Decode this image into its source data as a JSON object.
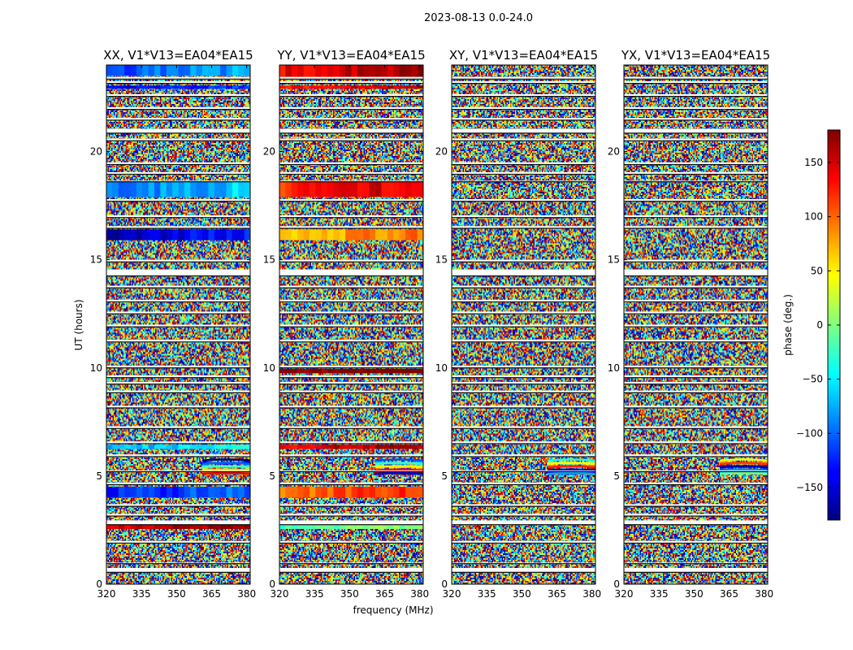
{
  "chart_data": {
    "type": "heatmap",
    "suptitle": "2023-08-13 0.0-24.0",
    "xlabel": "frequency (MHz)",
    "ylabel": "UT (hours)",
    "xlim": [
      320,
      381.5
    ],
    "ylim": [
      0,
      24
    ],
    "xticks": [
      320,
      335,
      350,
      365,
      380
    ],
    "yticks": [
      0,
      5,
      10,
      15,
      20
    ],
    "colorbar": {
      "label": "phase (deg.)",
      "range": [
        -180,
        180
      ],
      "ticks": [
        150,
        100,
        50,
        0,
        -50,
        -100,
        -150
      ],
      "tick_labels": [
        "150",
        "100",
        "50",
        "0",
        "−50",
        "−100",
        "−150"
      ],
      "colormap": "jet"
    },
    "panels": [
      {
        "title": "XX, V1*V13=EA04*EA15",
        "coherent_bands": [
          {
            "t0": 23.5,
            "t1": 24.0,
            "phase": -110
          },
          {
            "t0": 22.9,
            "t1": 23.05,
            "phase": -150
          },
          {
            "t0": 17.9,
            "t1": 18.6,
            "phase": -95
          },
          {
            "t0": 15.9,
            "t1": 16.4,
            "phase": -160
          },
          {
            "t0": 6.25,
            "t1": 6.45,
            "phase": -75
          },
          {
            "t0": 4.0,
            "t1": 4.5,
            "phase": -130
          },
          {
            "t0": 2.55,
            "t1": 2.75,
            "phase": 150
          }
        ]
      },
      {
        "title": "YY, V1*V13=EA04*EA15",
        "coherent_bands": [
          {
            "t0": 23.45,
            "t1": 24.0,
            "phase": 140
          },
          {
            "t0": 22.9,
            "t1": 23.05,
            "phase": 130
          },
          {
            "t0": 17.9,
            "t1": 18.6,
            "phase": 120
          },
          {
            "t0": 15.9,
            "t1": 16.4,
            "phase": 65
          },
          {
            "t0": 9.75,
            "t1": 9.95,
            "phase": 170
          },
          {
            "t0": 6.25,
            "t1": 6.45,
            "phase": 140
          },
          {
            "t0": 4.0,
            "t1": 4.5,
            "phase": 90
          },
          {
            "t0": 2.55,
            "t1": 2.75,
            "phase": -20
          }
        ]
      },
      {
        "title": "XY, V1*V13=EA04*EA15",
        "coherent_bands": []
      },
      {
        "title": "YX, V1*V13=EA04*EA15",
        "coherent_bands": []
      }
    ],
    "flagged_gaps_hours": [
      [
        0.55,
        0.75
      ],
      [
        0.95,
        1.0
      ],
      [
        1.9,
        2.0
      ],
      [
        2.75,
        2.95
      ],
      [
        3.15,
        3.25
      ],
      [
        3.6,
        3.7
      ],
      [
        4.6,
        4.7
      ],
      [
        5.2,
        5.25
      ],
      [
        5.9,
        6.0
      ],
      [
        6.5,
        6.6
      ],
      [
        7.2,
        7.3
      ],
      [
        8.15,
        8.25
      ],
      [
        8.85,
        8.95
      ],
      [
        9.25,
        9.35
      ],
      [
        9.55,
        9.65
      ],
      [
        10.0,
        10.1
      ],
      [
        11.2,
        11.3
      ],
      [
        11.9,
        12.0
      ],
      [
        12.5,
        12.6
      ],
      [
        13.05,
        13.15
      ],
      [
        13.7,
        13.8
      ],
      [
        14.25,
        14.55
      ],
      [
        14.9,
        15.0
      ],
      [
        16.45,
        16.55
      ],
      [
        16.95,
        17.05
      ],
      [
        17.7,
        17.8
      ],
      [
        18.6,
        18.65
      ],
      [
        18.95,
        19.05
      ],
      [
        19.4,
        19.5
      ],
      [
        20.5,
        20.6
      ],
      [
        20.85,
        21.05
      ],
      [
        21.45,
        21.55
      ],
      [
        21.95,
        22.05
      ],
      [
        22.55,
        22.65
      ],
      [
        23.15,
        23.25
      ],
      [
        23.35,
        23.45
      ]
    ],
    "fringe_region": {
      "t0": 5.05,
      "t1": 5.75,
      "f0": 361,
      "f1": 381.5
    }
  }
}
